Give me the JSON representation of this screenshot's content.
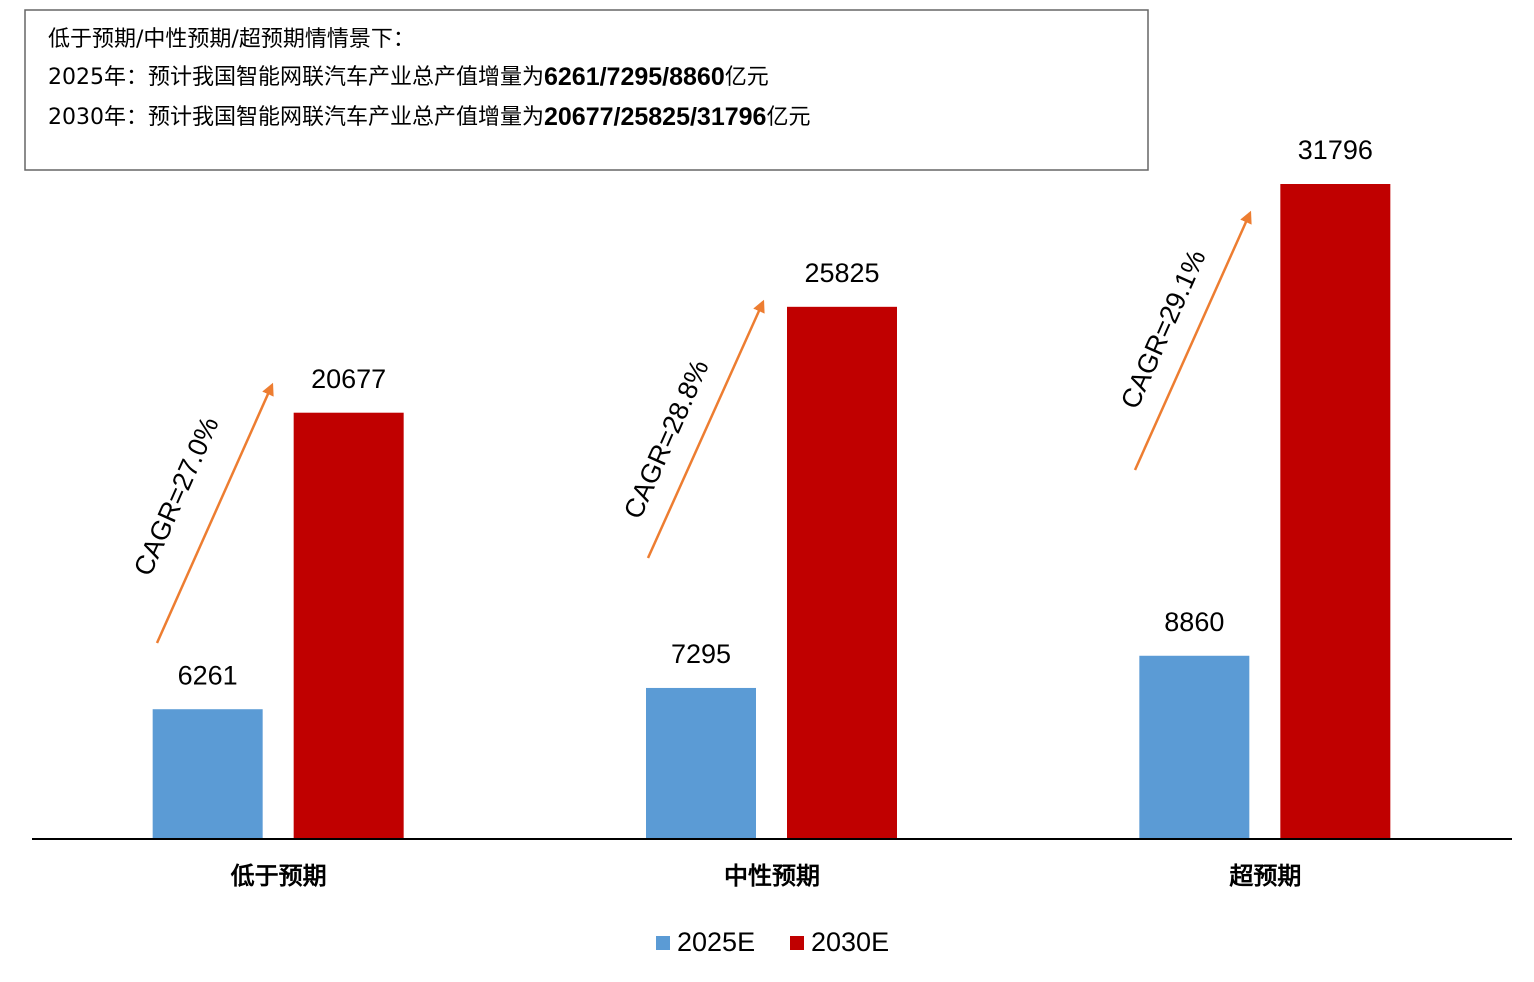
{
  "chart_data": {
    "type": "bar",
    "annotation": {
      "heading": "低于预期/中性预期/超预期情情景下：",
      "lines": [
        {
          "lead": "2025年：预计我国智能网联汽车产业总产值增量为",
          "bold": "6261/7295/8860",
          "unit": "亿元"
        },
        {
          "lead": "2030年：预计我国智能网联汽车产业总产值增量为",
          "bold": "20677/25825/31796",
          "unit": "亿元"
        }
      ]
    },
    "categories": [
      "低于预期",
      "中性预期",
      "超预期"
    ],
    "series": [
      {
        "name": "2025E",
        "color": "#5b9bd5",
        "values": [
          6261,
          7295,
          8860
        ]
      },
      {
        "name": "2030E",
        "color": "#c00000",
        "values": [
          20677,
          25825,
          31796
        ]
      }
    ],
    "cagr_labels": [
      "CAGR=27.0%",
      "CAGR=28.8%",
      "CAGR=29.1%"
    ],
    "arrow_color": "#ed7d31"
  }
}
